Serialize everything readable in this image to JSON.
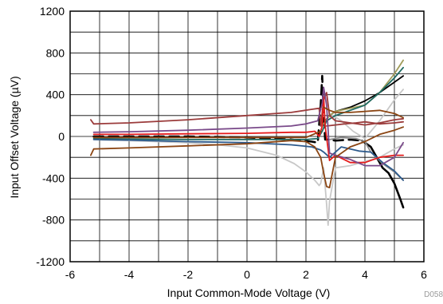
{
  "chart_data": {
    "type": "line",
    "title": "",
    "xlabel": "Input Common-Mode Voltage (V)",
    "ylabel": "Input Offset Voltage (µV)",
    "xlim": [
      -6,
      6
    ],
    "ylim": [
      -1200,
      1200
    ],
    "xticks": [
      -6,
      -4,
      -2,
      0,
      2,
      4,
      6
    ],
    "yticks": [
      -1200,
      -800,
      -400,
      0,
      400,
      800,
      1200
    ],
    "xtick_labels": [
      "-6",
      "-4",
      "-2",
      "0",
      "2",
      "4",
      "6"
    ],
    "ytick_labels": [
      "-1200",
      "-800",
      "-400",
      "0",
      "400",
      "800",
      "1200"
    ],
    "grid": true,
    "minor_grid_per_major": 2,
    "legend": false,
    "footnote": "D058",
    "series": [
      {
        "color": "#000000",
        "width": 2.6,
        "dash": "12,7",
        "x": [
          -5.2,
          -4,
          -2,
          0,
          1.5,
          2.2,
          2.4,
          2.5,
          2.55,
          2.6,
          2.65,
          2.8,
          3,
          3.5,
          3.9
        ],
        "y": [
          0,
          0,
          0,
          -10,
          -30,
          -50,
          -60,
          300,
          580,
          200,
          -30,
          -30,
          -40,
          -30,
          -40
        ]
      },
      {
        "color": "#000000",
        "width": 2.6,
        "dash": "",
        "x": [
          3.9,
          4.2,
          4.4,
          4.6,
          4.8,
          5.0,
          5.2,
          5.3
        ],
        "y": [
          -40,
          -100,
          -200,
          -300,
          -350,
          -450,
          -600,
          -680
        ]
      },
      {
        "color": "#000000",
        "width": 1.8,
        "dash": "",
        "x": [
          2.6,
          2.8,
          3.0,
          3.5,
          4.0,
          4.5,
          5.0,
          5.3
        ],
        "y": [
          130,
          200,
          240,
          280,
          340,
          420,
          520,
          580
        ]
      },
      {
        "color": "#c8c8c8",
        "width": 1.8,
        "dash": "",
        "x": [
          -5.2,
          -4,
          -2,
          -1,
          0,
          1,
          1.6,
          2.0,
          2.3,
          2.45,
          2.5,
          2.6,
          2.7,
          2.75,
          2.8,
          3.0,
          3.5,
          4,
          4.5,
          5,
          5.3
        ],
        "y": [
          -30,
          -40,
          -60,
          -80,
          -110,
          -180,
          -260,
          -340,
          -420,
          -470,
          -450,
          -300,
          -650,
          -850,
          -620,
          -300,
          -280,
          -240,
          -200,
          -120,
          -80
        ]
      },
      {
        "color": "#c8c8c8",
        "width": 1.8,
        "dash": "",
        "x": [
          2.8,
          3.2,
          3.6,
          4.0,
          4.5,
          5.0,
          5.3
        ],
        "y": [
          220,
          150,
          50,
          -20,
          150,
          350,
          450
        ]
      },
      {
        "color": "#8c8c8c",
        "width": 1.8,
        "dash": "",
        "x": [
          2.8,
          3.2,
          3.7,
          4.0,
          4.2,
          4.6,
          5.0,
          5.3
        ],
        "y": [
          -30,
          -10,
          -20,
          -50,
          -150,
          -260,
          -340,
          -420
        ]
      },
      {
        "color": "#a09c5a",
        "width": 1.8,
        "dash": "",
        "x": [
          2.6,
          2.8,
          3.0,
          3.5,
          4.0,
          4.5,
          5.0,
          5.3
        ],
        "y": [
          120,
          200,
          240,
          270,
          300,
          420,
          600,
          730
        ]
      },
      {
        "color": "#1f6b63",
        "width": 1.8,
        "dash": "",
        "x": [
          2.7,
          3.0,
          3.5,
          4.0,
          4.5,
          5.0,
          5.3
        ],
        "y": [
          150,
          200,
          250,
          300,
          420,
          560,
          660
        ]
      },
      {
        "color": "#1f6b63",
        "width": 1.8,
        "dash": "",
        "x": [
          -5.2,
          -4,
          -2,
          0,
          2.0,
          2.4,
          2.55,
          2.7
        ],
        "y": [
          -20,
          -25,
          -30,
          -30,
          -30,
          -20,
          50,
          150
        ]
      },
      {
        "color": "#2d5a8c",
        "width": 1.8,
        "dash": "",
        "x": [
          -5.2,
          -4,
          -2,
          0,
          1.5,
          2.2,
          2.5,
          2.6,
          2.8,
          3.2,
          3.8,
          4.2,
          4.6,
          5.0,
          5.3
        ],
        "y": [
          -30,
          -35,
          -50,
          -60,
          -80,
          -100,
          -130,
          -150,
          -200,
          -100,
          -140,
          -150,
          -250,
          -330,
          -420
        ]
      },
      {
        "color": "#9b3b3b",
        "width": 1.8,
        "dash": "",
        "x": [
          -5.3,
          -5.2,
          -4,
          -2,
          0,
          1.5,
          2.2,
          2.45,
          2.5,
          2.6,
          2.7,
          2.8,
          3.0,
          3.5,
          4,
          4.5,
          5,
          5.3
        ],
        "y": [
          160,
          120,
          130,
          160,
          200,
          230,
          260,
          270,
          100,
          350,
          420,
          200,
          150,
          130,
          110,
          130,
          160,
          170
        ]
      },
      {
        "color": "#9b3b3b",
        "width": 1.8,
        "dash": "",
        "x": [
          2.7,
          3.0,
          3.3,
          3.7,
          4.0,
          4.5,
          5.0,
          5.3
        ],
        "y": [
          100,
          110,
          120,
          130,
          140,
          120,
          130,
          140
        ]
      },
      {
        "color": "#e51c1c",
        "width": 1.8,
        "dash": "",
        "x": [
          -5.2,
          -4,
          -2,
          0,
          1.5,
          2.0,
          2.3,
          2.45,
          2.55,
          2.6,
          2.65,
          2.8,
          3.0,
          3.5,
          4.0,
          4.5,
          5.0,
          5.3
        ],
        "y": [
          20,
          20,
          25,
          30,
          40,
          40,
          50,
          0,
          100,
          380,
          100,
          -230,
          -180,
          -250,
          -250,
          -200,
          -180,
          -180
        ]
      },
      {
        "color": "#7a4a8a",
        "width": 1.8,
        "dash": "",
        "x": [
          -5.2,
          -4,
          -2,
          0,
          1.5,
          2.0,
          2.4,
          2.55,
          2.6,
          2.7,
          2.8,
          3.0,
          3.5,
          4.0,
          4.5,
          5.0,
          5.3
        ],
        "y": [
          40,
          45,
          60,
          80,
          100,
          120,
          150,
          320,
          470,
          300,
          -160,
          -180,
          -220,
          -280,
          -280,
          -200,
          -60
        ]
      },
      {
        "color": "#8b4513",
        "width": 1.8,
        "dash": "",
        "x": [
          -5.3,
          -5.2,
          -4,
          -2,
          0,
          1.5,
          2.0,
          2.3,
          2.5,
          2.6,
          2.7,
          2.8,
          3.0,
          3.5,
          4.0,
          4.5,
          5.0,
          5.3
        ],
        "y": [
          -180,
          -120,
          -110,
          -90,
          -70,
          -40,
          -50,
          -100,
          -200,
          -350,
          -480,
          -490,
          -200,
          -100,
          -50,
          20,
          60,
          90
        ]
      },
      {
        "color": "#8b4513",
        "width": 1.8,
        "dash": "",
        "x": [
          2.6,
          2.8,
          3.0,
          3.5,
          4.0,
          4.5,
          5.0,
          5.3
        ],
        "y": [
          280,
          250,
          230,
          230,
          240,
          250,
          220,
          180
        ]
      },
      {
        "color": "#8b4513",
        "width": 1.8,
        "dash": "",
        "x": [
          -5.2,
          -4,
          -2,
          0,
          2,
          2.5
        ],
        "y": [
          -10,
          -10,
          -10,
          -10,
          -10,
          50
        ]
      }
    ]
  }
}
